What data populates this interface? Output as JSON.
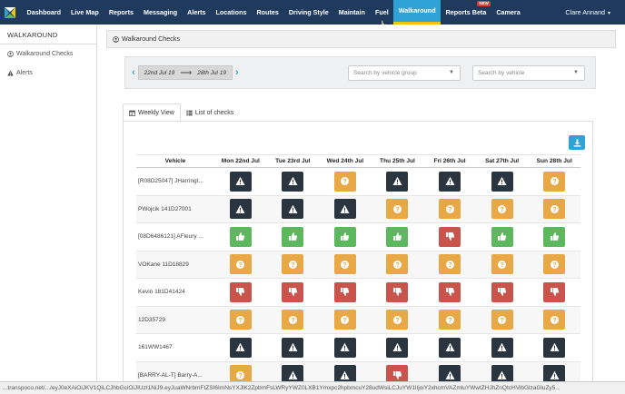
{
  "nav": {
    "items": [
      {
        "label": "Dashboard",
        "active": false
      },
      {
        "label": "Live Map",
        "active": false
      },
      {
        "label": "Reports",
        "active": false
      },
      {
        "label": "Messaging",
        "active": false
      },
      {
        "label": "Alerts",
        "active": false
      },
      {
        "label": "Locations",
        "active": false
      },
      {
        "label": "Routes",
        "active": false
      },
      {
        "label": "Driving Style",
        "active": false
      },
      {
        "label": "Maintain",
        "active": false
      },
      {
        "label": "Fuel",
        "active": false
      },
      {
        "label": "Walkaround",
        "active": true
      },
      {
        "label": "Reports Beta",
        "active": false,
        "badge": "NEW"
      },
      {
        "label": "Camera",
        "active": false
      }
    ],
    "user": "Clare Annand",
    "accent": "#2fa3d6",
    "background": "#1f3a5c"
  },
  "sidebar": {
    "title": "WALKAROUND",
    "items": [
      {
        "label": "Walkaround Checks",
        "icon": "user-circle-icon"
      },
      {
        "label": "Alerts",
        "icon": "warning-icon"
      }
    ]
  },
  "main": {
    "panel_title": "Walkaround Checks",
    "date_from": "22nd Jul 19",
    "date_to": "28th Jul 19",
    "group_placeholder": "Search by vehicle group",
    "vehicle_placeholder": "Search by vehicle",
    "tabs": [
      {
        "label": "Weekly View",
        "icon": "calendar-icon",
        "active": true
      },
      {
        "label": "List of checks",
        "icon": "list-icon",
        "active": false
      }
    ],
    "table": {
      "columns": [
        "Vehicle",
        "Mon 22nd Jul",
        "Tue 23rd Jul",
        "Wed 24th Jul",
        "Thu 25th Jul",
        "Fri 26th Jul",
        "Sat 27th Jul",
        "Sun 28th Jul"
      ],
      "rows": [
        {
          "vehicle": "[R08D25047] JHarringt...",
          "status": [
            "alert",
            "alert",
            "unknown",
            "alert",
            "alert",
            "alert",
            "unknown"
          ]
        },
        {
          "vehicle": "PWojcik 141D27001",
          "status": [
            "alert",
            "alert",
            "alert",
            "unknown",
            "unknown",
            "unknown",
            "unknown"
          ]
        },
        {
          "vehicle": "[08D6486121] AFleury ...",
          "status": [
            "ok",
            "ok",
            "ok",
            "ok",
            "fail",
            "ok",
            "ok"
          ]
        },
        {
          "vehicle": "VOKane 11D18829",
          "status": [
            "unknown",
            "unknown",
            "unknown",
            "unknown",
            "unknown",
            "unknown",
            "unknown"
          ]
        },
        {
          "vehicle": "Kevin 181D41424",
          "status": [
            "fail",
            "fail",
            "fail",
            "fail",
            "fail",
            "fail",
            "fail"
          ]
        },
        {
          "vehicle": "12D35729",
          "status": [
            "unknown",
            "unknown",
            "unknown",
            "unknown",
            "unknown",
            "unknown",
            "unknown"
          ]
        },
        {
          "vehicle": "161WW1467",
          "status": [
            "alert",
            "alert",
            "alert",
            "alert",
            "alert",
            "alert",
            "alert"
          ]
        },
        {
          "vehicle": "[BARRY-AL-T] Barry-A...",
          "status": [
            "unknown",
            "alert",
            "alert",
            "fail",
            "alert",
            "alert",
            "alert"
          ]
        }
      ]
    },
    "status_colors": {
      "alert": "#2b3540",
      "unknown": "#e8a845",
      "ok": "#5cb85c",
      "fail": "#c9544c"
    }
  },
  "statusbar": {
    "url": "...transpoco.net/.../eyJ0eXAiOiJKV1QiLCJhbGciOiJIUzI1NiJ9.eyJuaWNrbmFtZSI6ImNsYXJlK2ZpbmFsLWRyYWZ0LXB1Ymxpc2hpbmcuY28udWsiLCJuYW1lIjoiY2xhcmVAZmluYWwtZHJhZnQtcHVibGlzaGluZy5..."
  }
}
